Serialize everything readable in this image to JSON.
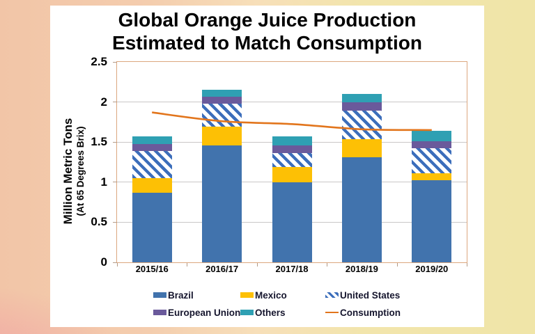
{
  "title": {
    "line1": "Global Orange Juice Production",
    "line2": "Estimated to Match Consumption"
  },
  "chart_data": {
    "type": "bar",
    "subtype": "stacked-bars-with-line-overlay",
    "categories": [
      "2015/16",
      "2016/17",
      "2017/18",
      "2018/19",
      "2019/20"
    ],
    "series": [
      {
        "name": "Brazil",
        "kind": "bar",
        "color": "#4173AD",
        "values": [
          0.87,
          1.46,
          1.0,
          1.31,
          1.02
        ]
      },
      {
        "name": "Mexico",
        "kind": "bar",
        "color": "#FDC005",
        "values": [
          0.18,
          0.23,
          0.185,
          0.23,
          0.09
        ]
      },
      {
        "name": "United States",
        "kind": "bar",
        "color": "#3C6EBB",
        "pattern": "diagonal-hatch",
        "values": [
          0.335,
          0.285,
          0.18,
          0.355,
          0.31
        ]
      },
      {
        "name": "European Union",
        "kind": "bar",
        "color": "#6A5A9B",
        "values": [
          0.095,
          0.095,
          0.09,
          0.1,
          0.09
        ]
      },
      {
        "name": "Others",
        "kind": "bar",
        "color": "#2FA0B3",
        "values": [
          0.095,
          0.085,
          0.12,
          0.11,
          0.13
        ]
      },
      {
        "name": "Consumption",
        "kind": "line",
        "color": "#E2751C",
        "values": [
          1.87,
          1.76,
          1.725,
          1.66,
          1.65
        ]
      }
    ],
    "ylabel": "Million Metric Tons",
    "ylabel_sub": "(At 65 Degrees Brix)",
    "xlabel": "",
    "ylim": [
      0,
      2.5
    ],
    "yticks": [
      "0",
      "0.5",
      "1",
      "1.5",
      "2",
      "2.5"
    ],
    "grid": true,
    "legend_position": "bottom"
  },
  "colors": {
    "plot_border": "#DCA77E",
    "gridline": "#C9C7C7",
    "tick": "#B49A86",
    "background_left": "#F2C5A7",
    "background_right": "#F0E5A8",
    "background_bottom_left": "#F3AAB2",
    "panel": "#FFFFFF",
    "text": "#000000",
    "legend_text": "#16162E"
  }
}
